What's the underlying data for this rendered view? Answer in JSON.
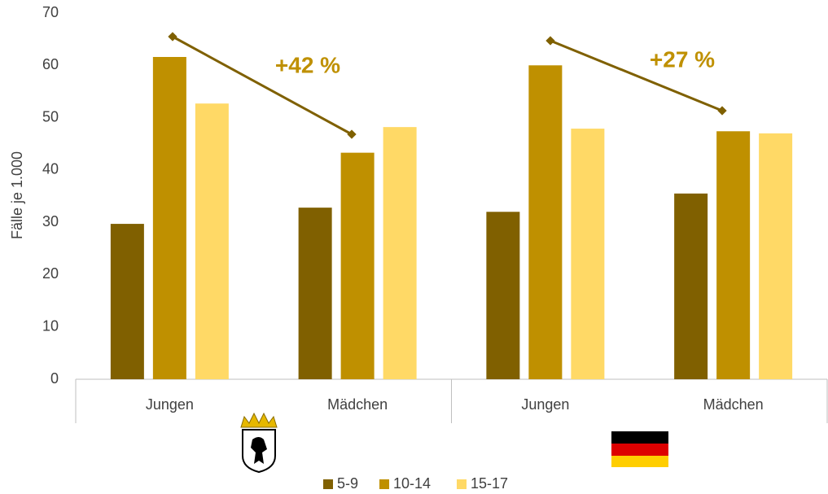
{
  "chart_data": {
    "type": "bar",
    "y_label": "Fälle je 1.000",
    "categories": [
      "Jungen",
      "Mädchen",
      "Jungen",
      "Mädchen"
    ],
    "series": [
      {
        "name": "5-9",
        "color": "#806000",
        "values": [
          29.7,
          32.8,
          32.0,
          35.5
        ]
      },
      {
        "name": "10-14",
        "color": "#BF9000",
        "values": [
          61.6,
          43.3,
          60.0,
          47.4
        ]
      },
      {
        "name": "15-17",
        "color": "#FFD966",
        "values": [
          52.7,
          48.2,
          47.9,
          47.0
        ]
      }
    ],
    "annotations": [
      "+42 %",
      "+27 %"
    ],
    "annotation_color": "#BF9000",
    "annotation_line_color": "#7F6000",
    "ylim": [
      0,
      70
    ],
    "yticks": [
      0,
      10,
      20,
      30,
      40,
      50,
      60,
      70
    ],
    "grid": false,
    "legend": "bottom"
  }
}
